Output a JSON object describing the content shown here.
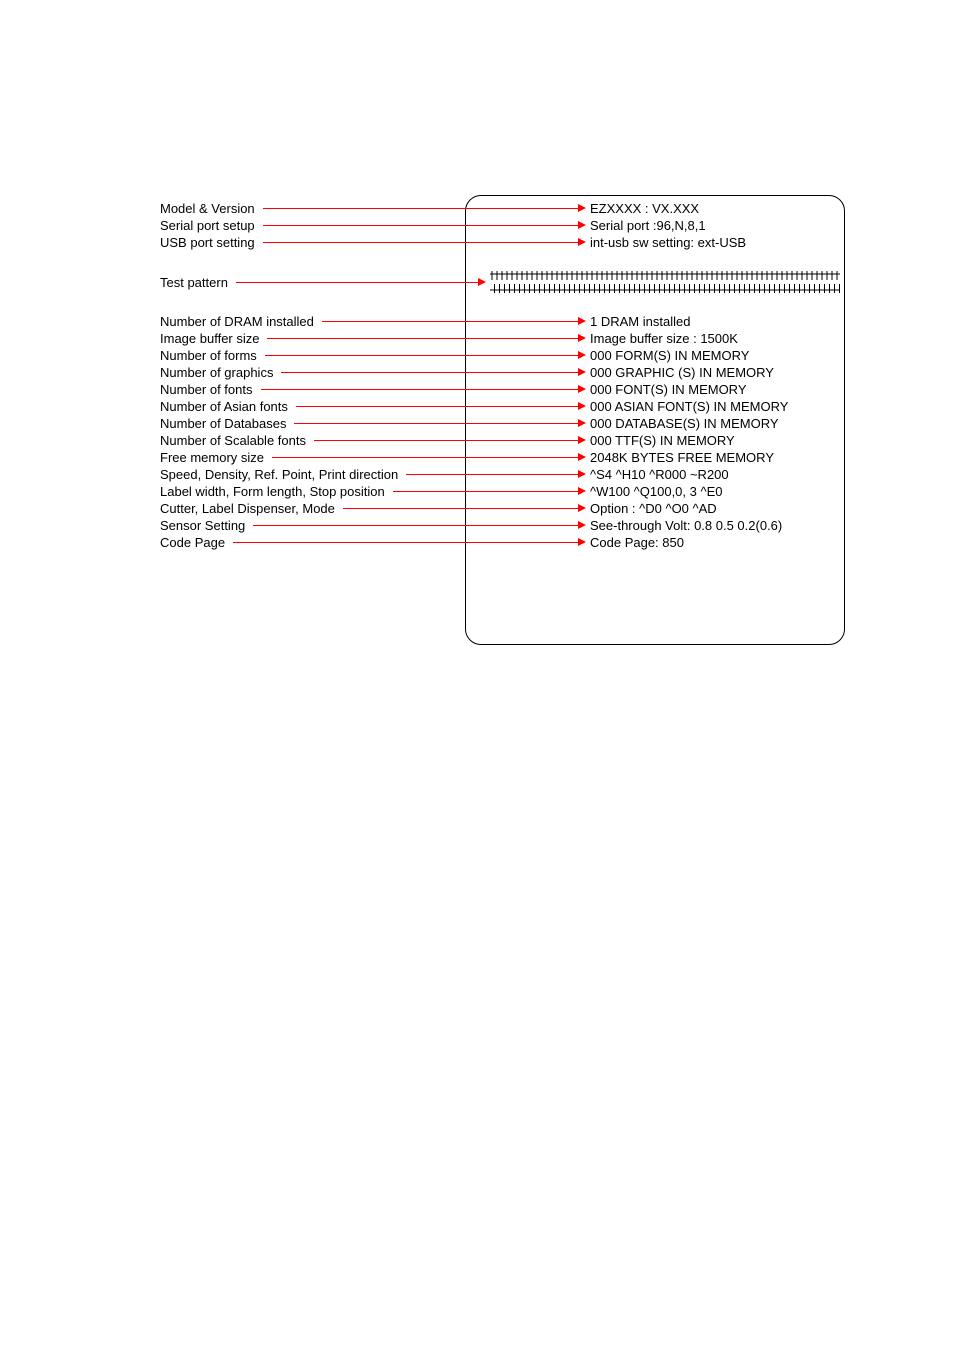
{
  "colors": {
    "line": "#ff0000",
    "text": "#000000",
    "border": "#000000",
    "background": "#ffffff"
  },
  "rows": [
    {
      "label": "Model & Version",
      "value": "EZXXXX : VX.XXX"
    },
    {
      "label": "Serial port setup",
      "value": "Serial port :96,N,8,1"
    },
    {
      "label": "USB port setting",
      "value": "int-usb sw setting: ext-USB"
    }
  ],
  "testPattern": {
    "label": "Test pattern"
  },
  "rows2": [
    {
      "label": "Number of DRAM installed",
      "value": "1 DRAM installed"
    },
    {
      "label": "Image buffer size",
      "value": "Image buffer size : 1500K"
    },
    {
      "label": "Number of forms",
      "value": "000 FORM(S) IN MEMORY"
    },
    {
      "label": "Number of graphics",
      "value": "000 GRAPHIC (S) IN MEMORY"
    },
    {
      "label": "Number of fonts",
      "value": "000 FONT(S) IN MEMORY"
    },
    {
      "label": "Number of Asian fonts",
      "value": "000 ASIAN FONT(S) IN MEMORY"
    },
    {
      "label": "Number of Databases",
      "value": "000 DATABASE(S) IN MEMORY"
    },
    {
      "label": "Number of Scalable fonts",
      "value": "000 TTF(S) IN MEMORY"
    },
    {
      "label": "Free memory size",
      "value": "2048K BYTES FREE MEMORY"
    },
    {
      "label": "Speed, Density, Ref. Point, Print direction",
      "value": "^S4   ^H10   ^R000   ~R200"
    },
    {
      "label": "Label width, Form length, Stop position",
      "value": "^W100   ^Q100,0, 3   ^E0"
    },
    {
      "label": "Cutter, Label Dispenser, Mode",
      "value": "Option : ^D0   ^O0   ^AD"
    },
    {
      "label": "Sensor Setting",
      "value": "See-through Volt: 0.8 0.5 0.2(0.6)"
    },
    {
      "label": "Code Page",
      "value": "Code Page:    850"
    }
  ]
}
